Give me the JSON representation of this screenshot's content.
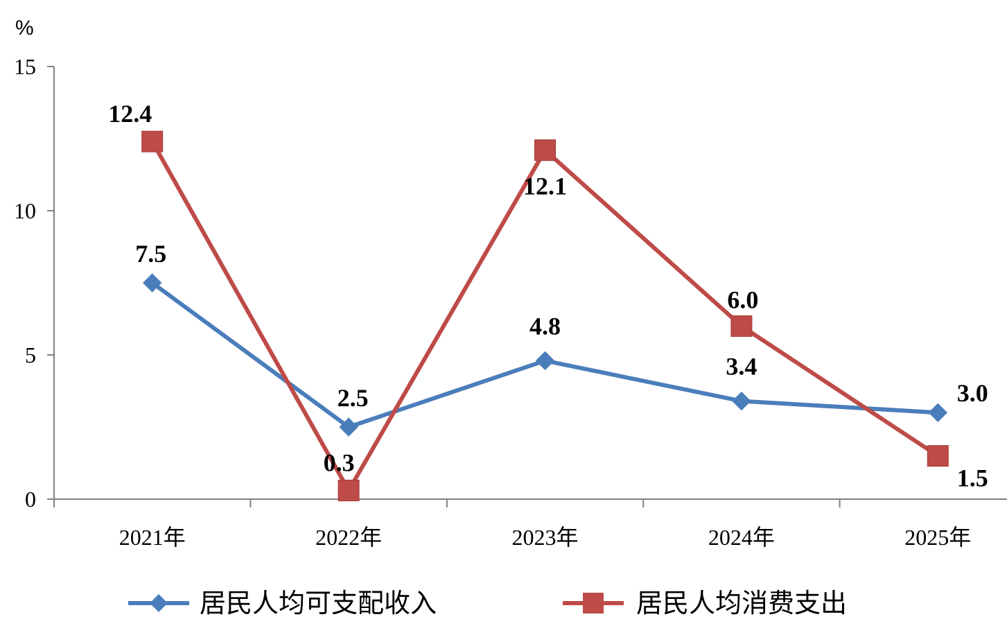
{
  "chart_data": {
    "type": "line",
    "unit_label": "%",
    "categories": [
      "2021年",
      "2022年",
      "2023年",
      "2024年",
      "2025年"
    ],
    "ylim": [
      0,
      15
    ],
    "yticks": [
      "0",
      "5",
      "10",
      "15"
    ],
    "grid": false,
    "legend_position": "bottom",
    "series": [
      {
        "name": "居民人均可支配收入",
        "values": [
          7.5,
          2.5,
          4.8,
          3.4,
          3.0
        ],
        "labels": [
          "7.5",
          "2.5",
          "4.8",
          "3.4",
          "3.0"
        ],
        "color": "#4a7ebb",
        "marker": "diamond"
      },
      {
        "name": "居民人均消费支出",
        "values": [
          12.4,
          0.3,
          12.1,
          6.0,
          1.5
        ],
        "labels": [
          "12.4",
          "0.3",
          "12.1",
          "6.0",
          "1.5"
        ],
        "color": "#be4b48",
        "marker": "square"
      }
    ]
  }
}
